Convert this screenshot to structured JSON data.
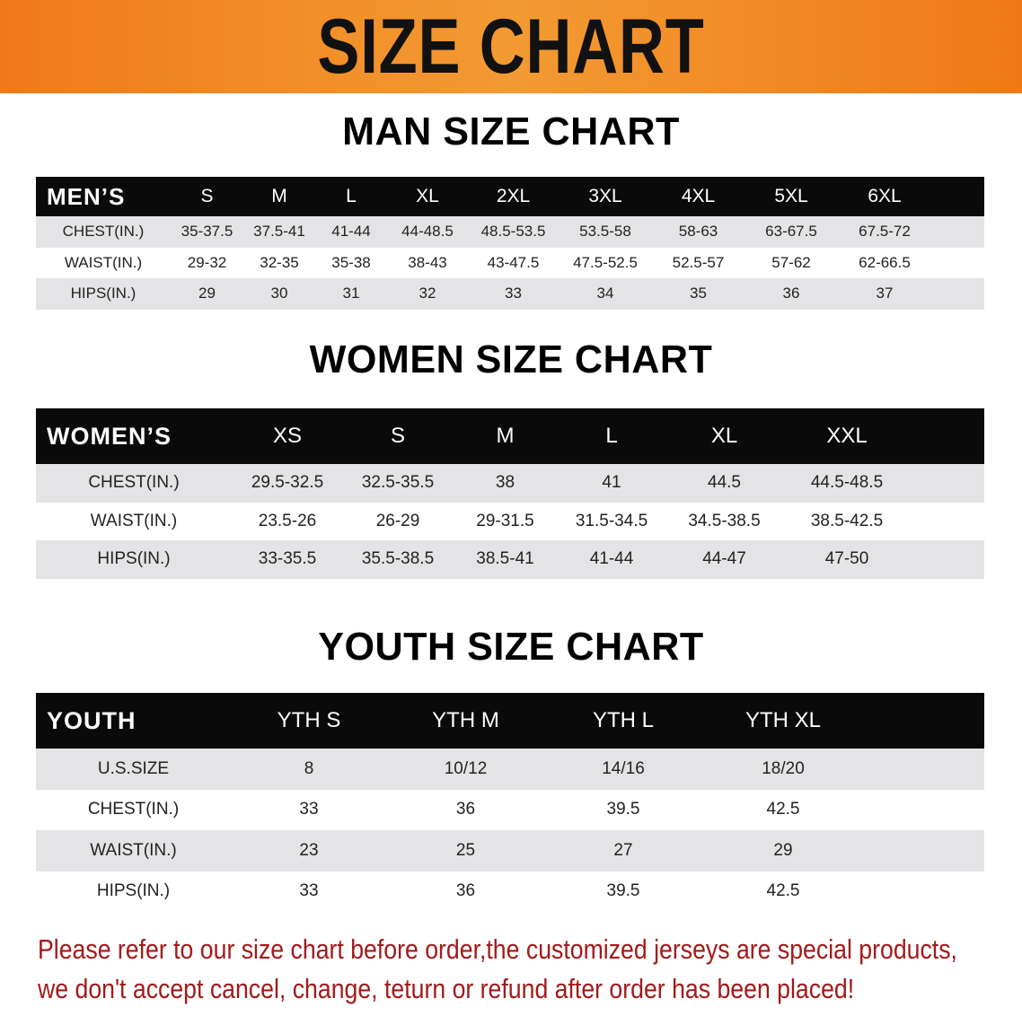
{
  "banner": {
    "title": "SIZE CHART",
    "color": "#ef7b18"
  },
  "men": {
    "title": "MAN SIZE CHART",
    "header_label": "MEN’S",
    "sizes": [
      "S",
      "M",
      "L",
      "XL",
      "2XL",
      "3XL",
      "4XL",
      "5XL",
      "6XL"
    ],
    "rows": [
      {
        "label": "CHEST(IN.)",
        "values": [
          "35-37.5",
          "37.5-41",
          "41-44",
          "44-48.5",
          "48.5-53.5",
          "53.5-58",
          "58-63",
          "63-67.5",
          "67.5-72"
        ]
      },
      {
        "label": "WAIST(IN.)",
        "values": [
          "29-32",
          "32-35",
          "35-38",
          "38-43",
          "43-47.5",
          "47.5-52.5",
          "52.5-57",
          "57-62",
          "62-66.5"
        ]
      },
      {
        "label": "HIPS(IN.)",
        "values": [
          "29",
          "30",
          "31",
          "32",
          "33",
          "34",
          "35",
          "36",
          "37"
        ]
      }
    ]
  },
  "women": {
    "title": "WOMEN SIZE CHART",
    "header_label": "WOMEN’S",
    "sizes": [
      "XS",
      "S",
      "M",
      "L",
      "XL",
      "XXL"
    ],
    "rows": [
      {
        "label": "CHEST(IN.)",
        "values": [
          "29.5-32.5",
          "32.5-35.5",
          "38",
          "41",
          "44.5",
          "44.5-48.5"
        ]
      },
      {
        "label": "WAIST(IN.)",
        "values": [
          "23.5-26",
          "26-29",
          "29-31.5",
          "31.5-34.5",
          "34.5-38.5",
          "38.5-42.5"
        ]
      },
      {
        "label": "HIPS(IN.)",
        "values": [
          "33-35.5",
          "35.5-38.5",
          "38.5-41",
          "41-44",
          "44-47",
          "47-50"
        ]
      }
    ]
  },
  "youth": {
    "title": "YOUTH SIZE CHART",
    "header_label": "YOUTH",
    "sizes": [
      "YTH S",
      "YTH M",
      "YTH L",
      "YTH XL"
    ],
    "rows": [
      {
        "label": "U.S.SIZE",
        "values": [
          "8",
          "10/12",
          "14/16",
          "18/20"
        ]
      },
      {
        "label": "CHEST(IN.)",
        "values": [
          "33",
          "36",
          "39.5",
          "42.5"
        ]
      },
      {
        "label": "WAIST(IN.)",
        "values": [
          "23",
          "25",
          "27",
          "29"
        ]
      },
      {
        "label": "HIPS(IN.)",
        "values": [
          "33",
          "36",
          "39.5",
          "42.5"
        ]
      }
    ]
  },
  "note": {
    "line1": "Please refer to our size chart before order,the customized jerseys are special products,",
    "line2": "we don't accept cancel, change, teturn or refund after order has been placed!",
    "color": "#a31a1a"
  }
}
